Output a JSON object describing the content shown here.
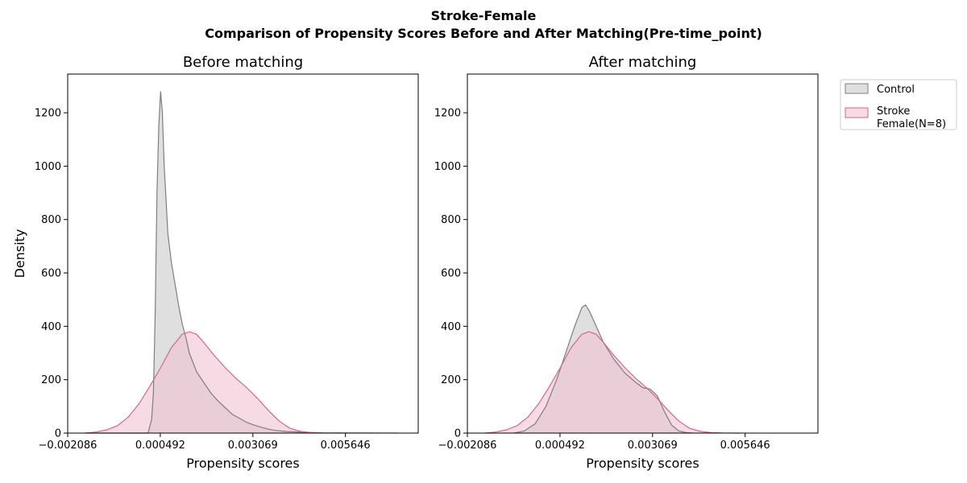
{
  "suptitle": {
    "line1": "Stroke-Female",
    "line2": "Comparison of Propensity Scores Before and After Matching(Pre-time_point)"
  },
  "colors": {
    "control_line": "#7f7f7f",
    "control_fill": "#d3d3d3",
    "treated_line": "#d6668c",
    "treated_fill": "#f0bfd0"
  },
  "legend": {
    "placement": "upper-right-outside",
    "items": [
      {
        "label": "Control",
        "series": "control"
      },
      {
        "label": "Stroke\nFemale(N=8)",
        "series": "treated"
      }
    ]
  },
  "chart_data": [
    {
      "type": "area",
      "title": "Before matching",
      "xlabel": "Propensity scores",
      "ylabel": "Density",
      "xlim": [
        -0.002086,
        0.007672
      ],
      "ylim": [
        0,
        1345
      ],
      "xticks": [
        -0.002086,
        0.000492,
        0.003069,
        0.005646
      ],
      "xtick_labels": [
        "−0.002086",
        "0.000492",
        "0.003069",
        "0.005646"
      ],
      "yticks": [
        0,
        200,
        400,
        600,
        800,
        1000,
        1200
      ],
      "grid": false,
      "series": [
        {
          "key": "control",
          "x": [
            -0.0016,
            0.0,
            0.00015,
            0.00025,
            0.0003,
            0.00035,
            0.0004,
            0.00045,
            0.0005,
            0.00055,
            0.0006,
            0.00065,
            0.0007,
            0.0008,
            0.0009,
            0.001,
            0.0011,
            0.0012,
            0.0013,
            0.0015,
            0.0017,
            0.0019,
            0.0021,
            0.0023,
            0.0025,
            0.0027,
            0.0029,
            0.0031,
            0.0033,
            0.0035,
            0.0037,
            0.004,
            0.0045,
            0.005,
            0.006,
            0.007,
            0.0071
          ],
          "y": [
            0,
            0,
            0,
            50,
            150,
            450,
            900,
            1150,
            1280,
            1200,
            1000,
            880,
            750,
            640,
            560,
            480,
            410,
            360,
            300,
            230,
            190,
            150,
            120,
            95,
            70,
            55,
            40,
            30,
            22,
            15,
            10,
            6,
            3,
            1,
            0.5,
            0.2,
            0
          ]
        },
        {
          "key": "treated",
          "x": [
            -0.0016,
            -0.0013,
            -0.001,
            -0.0007,
            -0.0004,
            -0.0001,
            0.0002,
            0.0005,
            0.0008,
            0.0011,
            0.0013,
            0.0015,
            0.0017,
            0.002,
            0.0023,
            0.0026,
            0.0029,
            0.0032,
            0.0035,
            0.0038,
            0.0041,
            0.0044,
            0.0047,
            0.005,
            0.0055
          ],
          "y": [
            0,
            4,
            12,
            28,
            60,
            110,
            175,
            245,
            320,
            370,
            380,
            370,
            340,
            290,
            245,
            205,
            170,
            130,
            85,
            45,
            18,
            6,
            2,
            0.5,
            0
          ]
        }
      ]
    },
    {
      "type": "area",
      "title": "After matching",
      "xlabel": "Propensity scores",
      "ylabel": "",
      "xlim": [
        -0.002086,
        0.007672
      ],
      "ylim": [
        0,
        1345
      ],
      "xticks": [
        -0.002086,
        0.000492,
        0.003069,
        0.005646
      ],
      "xtick_labels": [
        "−0.002086",
        "0.000492",
        "0.003069",
        "0.005646"
      ],
      "yticks": [
        0,
        200,
        400,
        600,
        800,
        1000,
        1200
      ],
      "grid": false,
      "series": [
        {
          "key": "control",
          "x": [
            -0.0008,
            -0.0005,
            -0.0002,
            0.0001,
            0.0004,
            0.0007,
            0.0009,
            0.0011,
            0.0012,
            0.0013,
            0.0015,
            0.0017,
            0.002,
            0.0023,
            0.0026,
            0.0028,
            0.003,
            0.0032,
            0.0034,
            0.0036,
            0.0038,
            0.004,
            0.0042
          ],
          "y": [
            0,
            8,
            35,
            100,
            200,
            320,
            400,
            470,
            480,
            460,
            400,
            340,
            275,
            225,
            190,
            170,
            165,
            140,
            80,
            30,
            8,
            2,
            0
          ]
        },
        {
          "key": "treated",
          "x": [
            -0.0016,
            -0.0013,
            -0.001,
            -0.0007,
            -0.0004,
            -0.0001,
            0.0002,
            0.0005,
            0.0008,
            0.0011,
            0.0013,
            0.0015,
            0.0017,
            0.002,
            0.0023,
            0.0026,
            0.0029,
            0.0032,
            0.0035,
            0.0038,
            0.0041,
            0.0044,
            0.0047,
            0.005,
            0.0055
          ],
          "y": [
            0,
            4,
            12,
            28,
            60,
            110,
            175,
            245,
            320,
            370,
            380,
            370,
            340,
            290,
            245,
            205,
            170,
            130,
            85,
            45,
            18,
            6,
            2,
            0.5,
            0
          ]
        }
      ]
    }
  ]
}
